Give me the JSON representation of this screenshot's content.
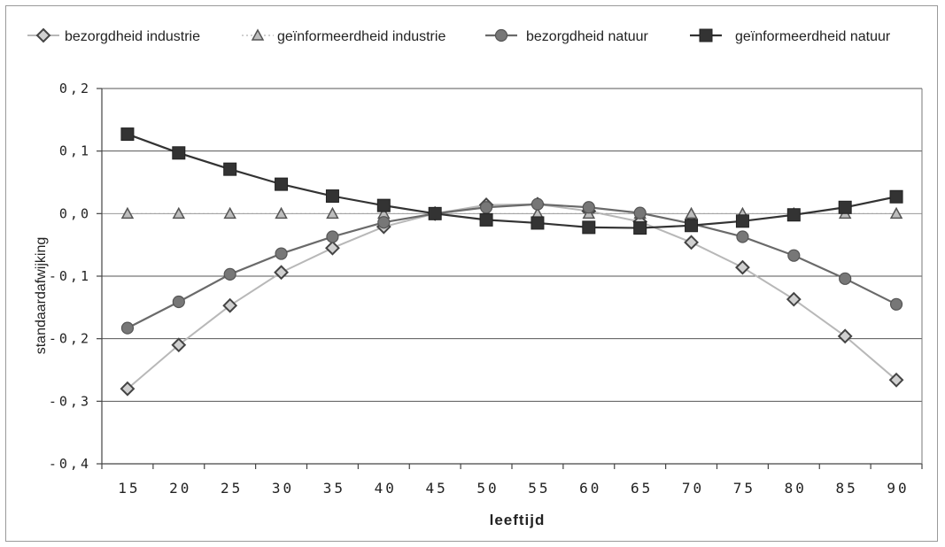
{
  "chart_data": {
    "type": "line",
    "title": "",
    "xlabel": "leeftijd",
    "ylabel": "standaardafwijking",
    "x": [
      15,
      20,
      25,
      30,
      35,
      40,
      45,
      50,
      55,
      60,
      65,
      70,
      75,
      80,
      85,
      90
    ],
    "x_tick_labels": [
      "15",
      "20",
      "25",
      "30",
      "35",
      "40",
      "45",
      "50",
      "55",
      "60",
      "65",
      "70",
      "75",
      "80",
      "85",
      "90"
    ],
    "y_tick_labels": [
      "0,2",
      "0,1",
      "0,0",
      "-0,1",
      "-0,2",
      "-0,3",
      "-0,4"
    ],
    "ylim": [
      -0.4,
      0.2
    ],
    "grid": true,
    "legend_position": "top",
    "series": [
      {
        "name": "bezorgdheid industrie",
        "marker": "diamond",
        "color": "#b5b5b5",
        "values": [
          -0.28,
          -0.21,
          -0.147,
          -0.094,
          -0.055,
          -0.021,
          0.0,
          0.014,
          0.015,
          0.004,
          -0.013,
          -0.046,
          -0.086,
          -0.137,
          -0.196,
          -0.266
        ]
      },
      {
        "name": "geïnformeerdheid industrie",
        "marker": "triangle",
        "color": "#888888",
        "values": [
          0,
          0,
          0,
          0,
          0,
          0,
          0,
          0,
          0,
          0,
          0,
          0,
          0,
          0,
          0,
          0
        ]
      },
      {
        "name": "bezorgdheid natuur",
        "marker": "circle",
        "color": "#6f6f6f",
        "values": [
          -0.183,
          -0.141,
          -0.097,
          -0.064,
          -0.037,
          -0.014,
          0.0,
          0.01,
          0.015,
          0.01,
          0.001,
          -0.016,
          -0.037,
          -0.067,
          -0.104,
          -0.145
        ]
      },
      {
        "name": "geïnformeerdheid natuur",
        "marker": "square",
        "color": "#3a3a3a",
        "values": [
          0.127,
          0.097,
          0.071,
          0.047,
          0.028,
          0.013,
          0.0,
          -0.01,
          -0.015,
          -0.022,
          -0.023,
          -0.019,
          -0.012,
          -0.002,
          0.01,
          0.027
        ]
      }
    ]
  }
}
